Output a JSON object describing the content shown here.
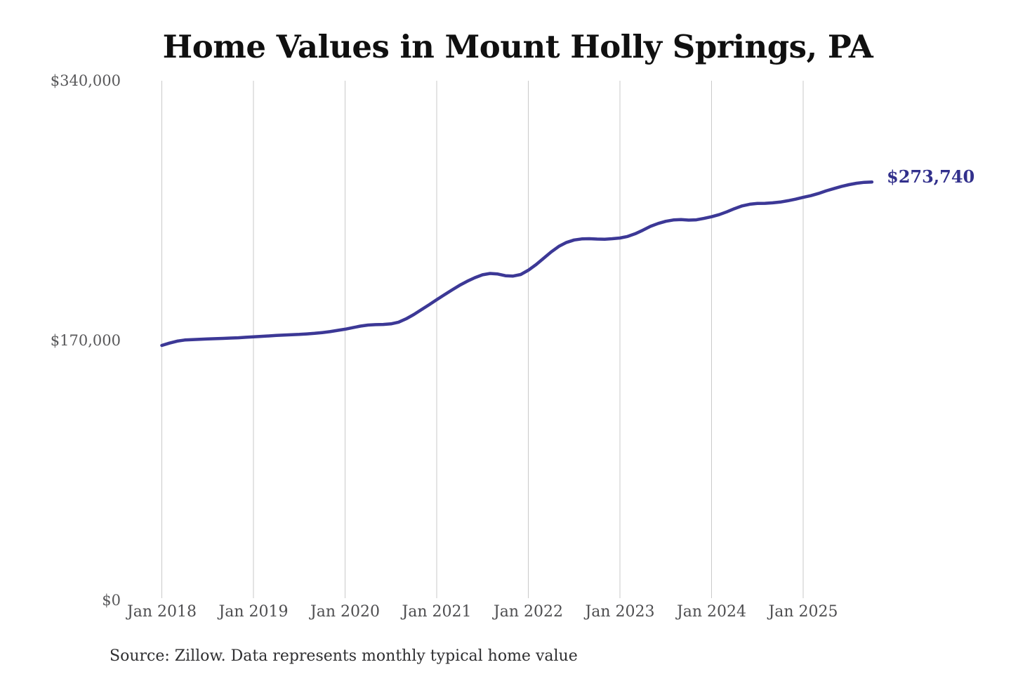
{
  "chart_data": {
    "type": "line",
    "title": "Home Values in Mount Holly Springs, PA",
    "series_name": "Monthly typical home value",
    "unit": "USD",
    "grid": "vertical-only",
    "legend": "none",
    "ylim": [
      0,
      340000
    ],
    "y_ticks": [
      {
        "value": 0,
        "label": "$0"
      },
      {
        "value": 170000,
        "label": "$170,000"
      },
      {
        "value": 340000,
        "label": "$340,000"
      }
    ],
    "x_tick_labels": [
      "Jan 2018",
      "Jan 2019",
      "Jan 2020",
      "Jan 2021",
      "Jan 2022",
      "Jan 2023",
      "Jan 2024",
      "Jan 2025"
    ],
    "x_tick_month_indices": [
      0,
      12,
      24,
      36,
      48,
      60,
      72,
      84
    ],
    "x": [
      "2018-01",
      "2018-02",
      "2018-03",
      "2018-04",
      "2018-05",
      "2018-06",
      "2018-07",
      "2018-08",
      "2018-09",
      "2018-10",
      "2018-11",
      "2018-12",
      "2019-01",
      "2019-02",
      "2019-03",
      "2019-04",
      "2019-05",
      "2019-06",
      "2019-07",
      "2019-08",
      "2019-09",
      "2019-10",
      "2019-11",
      "2019-12",
      "2020-01",
      "2020-02",
      "2020-03",
      "2020-04",
      "2020-05",
      "2020-06",
      "2020-07",
      "2020-08",
      "2020-09",
      "2020-10",
      "2020-11",
      "2020-12",
      "2021-01",
      "2021-02",
      "2021-03",
      "2021-04",
      "2021-05",
      "2021-06",
      "2021-07",
      "2021-08",
      "2021-09",
      "2021-10",
      "2021-11",
      "2021-12",
      "2022-01",
      "2022-02",
      "2022-03",
      "2022-04",
      "2022-05",
      "2022-06",
      "2022-07",
      "2022-08",
      "2022-09",
      "2022-10",
      "2022-11",
      "2022-12",
      "2023-01",
      "2023-02",
      "2023-03",
      "2023-04",
      "2023-05",
      "2023-06",
      "2023-07",
      "2023-08",
      "2023-09",
      "2023-10",
      "2023-11",
      "2023-12",
      "2024-01",
      "2024-02",
      "2024-03",
      "2024-04",
      "2024-05",
      "2024-06",
      "2024-07",
      "2024-08",
      "2024-09",
      "2024-10",
      "2024-11",
      "2024-12",
      "2025-01",
      "2025-02",
      "2025-03",
      "2025-04",
      "2025-05",
      "2025-06",
      "2025-07",
      "2025-08",
      "2025-09",
      "2025-10"
    ],
    "values": [
      166800,
      168300,
      169600,
      170300,
      170600,
      170800,
      171000,
      171200,
      171400,
      171600,
      171800,
      172100,
      172400,
      172700,
      173000,
      173300,
      173600,
      173800,
      174000,
      174300,
      174700,
      175200,
      175800,
      176600,
      177400,
      178400,
      179400,
      180100,
      180400,
      180500,
      180900,
      182000,
      184200,
      187000,
      190200,
      193400,
      196700,
      199900,
      203100,
      206100,
      208800,
      211100,
      213000,
      213900,
      213500,
      212400,
      212200,
      213200,
      216000,
      219600,
      223800,
      228000,
      231600,
      234200,
      235800,
      236500,
      236600,
      236400,
      236300,
      236600,
      237100,
      238100,
      239900,
      242200,
      244700,
      246600,
      248000,
      248900,
      249100,
      248800,
      249000,
      249900,
      251000,
      252400,
      254200,
      256300,
      258100,
      259200,
      259700,
      259800,
      260100,
      260600,
      261500,
      262500,
      263700,
      264800,
      266200,
      267900,
      269400,
      270800,
      272000,
      272900,
      273500,
      273740
    ],
    "latest_value": 273740,
    "end_label": "$273,740",
    "source_note": "Source: Zillow. Data represents monthly typical home value",
    "colors": {
      "line": "#3c3896",
      "end_label": "#32308c",
      "grid": "#c9c9c9",
      "title": "#101010",
      "y_tick_label": "#58585a",
      "x_tick_label": "#4e4e50",
      "source": "#2f2f31"
    }
  }
}
